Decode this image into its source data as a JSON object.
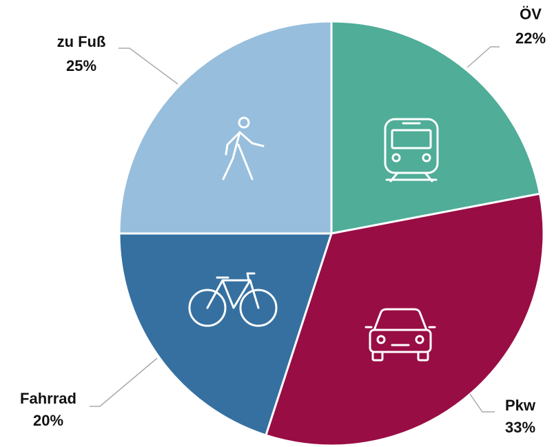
{
  "chart_data": {
    "type": "pie",
    "categories": [
      "ÖV",
      "Pkw",
      "Fahrrad",
      "zu Fuß"
    ],
    "values": [
      22,
      33,
      20,
      25
    ],
    "value_labels": [
      "22%",
      "33%",
      "20%",
      "25%"
    ],
    "colors": [
      "#4fad98",
      "#990d45",
      "#3670a0",
      "#97bedc"
    ]
  }
}
